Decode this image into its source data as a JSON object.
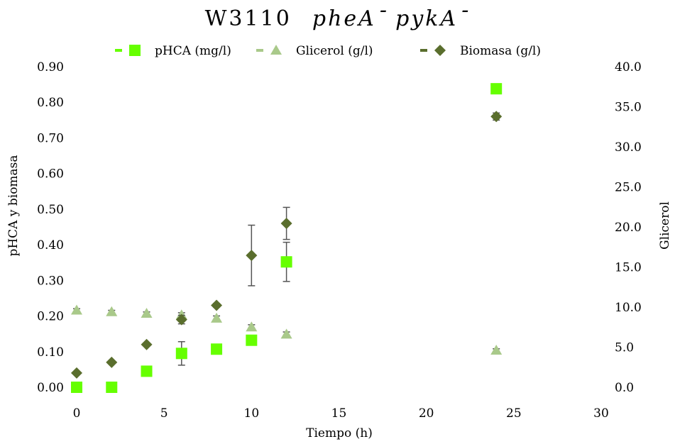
{
  "chart_data": {
    "type": "scatter",
    "title": "W3110",
    "title_italic": "pheA",
    "title_italic_sup": "-",
    "title_italic2": "pykA",
    "title_italic2_sup": "-",
    "xlabel": "Tiempo (h)",
    "ylabel_left": "pHCA y biomasa",
    "ylabel_right": "Glicerol",
    "xlim": [
      0,
      30
    ],
    "ylim_left": [
      0,
      0.9
    ],
    "ylim_right": [
      0,
      40
    ],
    "x_ticks": [
      "0",
      "5",
      "10",
      "15",
      "20",
      "25",
      "30"
    ],
    "y_left_ticks": [
      "0.00",
      "0.10",
      "0.20",
      "0.30",
      "0.40",
      "0.50",
      "0.60",
      "0.70",
      "0.80",
      "0.90"
    ],
    "y_right_ticks": [
      "0.0",
      "5.0",
      "10.0",
      "15.0",
      "20.0",
      "25.0",
      "30.0",
      "35.0",
      "40.0"
    ],
    "grid": false,
    "legend_position": "top",
    "series": [
      {
        "name": "pHCA (mg/l)",
        "axis": "left",
        "marker": "square",
        "color": "#66ff00",
        "x": [
          0,
          2,
          4,
          6,
          8,
          10,
          12,
          24
        ],
        "y": [
          0.0,
          0.0,
          0.045,
          0.095,
          0.107,
          0.132,
          0.352,
          0.838
        ],
        "err": [
          0,
          0,
          0.005,
          0.033,
          0.005,
          0.005,
          0.055,
          0.005
        ]
      },
      {
        "name": "Glicerol (g/l)",
        "axis": "right",
        "marker": "triangle",
        "color": "#a9c98a",
        "x": [
          0,
          2,
          4,
          6,
          8,
          10,
          12,
          24
        ],
        "y": [
          9.6,
          9.4,
          9.2,
          9.0,
          8.6,
          7.5,
          6.6,
          4.6
        ],
        "err": [
          0.2,
          0.2,
          0.2,
          0.3,
          0.3,
          0.3,
          0.3,
          0.2
        ]
      },
      {
        "name": "Biomasa (g/l)",
        "axis": "left",
        "marker": "diamond",
        "color": "#5a6e2d",
        "x": [
          0,
          2,
          4,
          6,
          8,
          10,
          12,
          24
        ],
        "y": [
          0.04,
          0.07,
          0.12,
          0.19,
          0.23,
          0.37,
          0.46,
          0.76
        ],
        "err": [
          0.003,
          0.003,
          0.004,
          0.012,
          0.005,
          0.085,
          0.045,
          0.01
        ]
      }
    ],
    "colors": {
      "axis_text": "#000000",
      "error_bar": "#555555"
    }
  }
}
